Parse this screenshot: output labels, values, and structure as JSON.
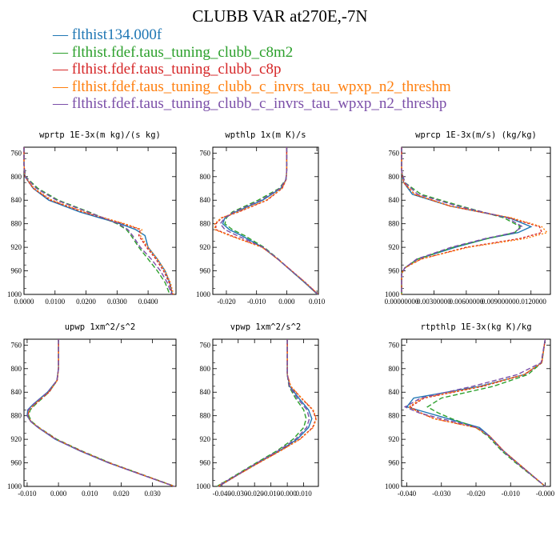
{
  "title": "CLUBB VAR at270E,-7N",
  "legend": [
    {
      "name": "flthist134.000f",
      "color": "#1f77b4"
    },
    {
      "name": "flthist.fdef.taus_tuning_clubb_c8m2",
      "color": "#2ca02c"
    },
    {
      "name": "flthist.fdef.taus_tuning_clubb_c8p",
      "color": "#d62728"
    },
    {
      "name": "flthist.fdef.taus_tuning_clubb_c_invrs_tau_wpxp_n2_threshm",
      "color": "#ff7f0e"
    },
    {
      "name": "flthist.fdef.taus_tuning_clubb_c_invrs_tau_wpxp_n2_threshp",
      "color": "#7b4fa8"
    }
  ],
  "chart_data": [
    {
      "type": "line",
      "title": "wprtp  1E-3x(m kg)/(s kg)",
      "xlim": [
        0,
        0.049
      ],
      "ylim": [
        1000,
        750
      ],
      "xticks": [
        0,
        0.01,
        0.02,
        0.03,
        0.04
      ],
      "xticklabels": [
        "0.0000",
        "0.0100",
        "0.0200",
        "0.0300",
        "0.0400"
      ],
      "yticks": [
        760,
        800,
        840,
        880,
        920,
        960,
        1000
      ],
      "yticklabels": [
        "760",
        "800",
        "840",
        "880",
        "920",
        "960",
        "1000"
      ],
      "y": [
        750,
        780,
        800,
        820,
        840,
        860,
        880,
        890,
        900,
        920,
        940,
        960,
        980,
        1000
      ],
      "series": [
        {
          "values": [
            0,
            0.0,
            0.0003,
            0.003,
            0.008,
            0.018,
            0.031,
            0.036,
            0.039,
            0.04,
            0.043,
            0.0455,
            0.047,
            0.0478
          ]
        },
        {
          "values": [
            0,
            0.0,
            0.0005,
            0.0045,
            0.011,
            0.021,
            0.03,
            0.033,
            0.0345,
            0.037,
            0.04,
            0.043,
            0.0455,
            0.047
          ]
        },
        {
          "values": [
            0,
            0.0,
            0.0003,
            0.003,
            0.0085,
            0.019,
            0.032,
            0.0375,
            0.037,
            0.0395,
            0.0425,
            0.045,
            0.0468,
            0.0478
          ]
        },
        {
          "values": [
            0,
            0.0,
            0.0003,
            0.0033,
            0.009,
            0.0195,
            0.0325,
            0.038,
            0.0375,
            0.04,
            0.043,
            0.0455,
            0.0472,
            0.0482
          ]
        },
        {
          "values": [
            0,
            0.0,
            0.0004,
            0.004,
            0.0105,
            0.0205,
            0.0305,
            0.0335,
            0.035,
            0.0375,
            0.041,
            0.044,
            0.0462,
            0.0476
          ]
        }
      ]
    },
    {
      "type": "line",
      "title": "wpthlp  1x(m K)/s",
      "xlim": [
        -0.0245,
        0.0105
      ],
      "ylim": [
        1000,
        750
      ],
      "xticks": [
        -0.02,
        -0.01,
        0,
        0.01
      ],
      "xticklabels": [
        "-0.020",
        "-0.010",
        "0.000",
        "0.010"
      ],
      "yticks": [
        760,
        800,
        840,
        880,
        920,
        960,
        1000
      ],
      "yticklabels": [
        "760",
        "800",
        "840",
        "880",
        "920",
        "960",
        "1000"
      ],
      "y": [
        750,
        790,
        805,
        820,
        840,
        860,
        870,
        880,
        890,
        900,
        920,
        940,
        960,
        980,
        1000
      ],
      "series": [
        {
          "values": [
            0,
            0,
            -0.0002,
            -0.002,
            -0.008,
            -0.017,
            -0.0205,
            -0.0212,
            -0.019,
            -0.015,
            -0.008,
            -0.003,
            0.0015,
            0.006,
            0.0102
          ]
        },
        {
          "values": [
            0,
            0,
            -0.0003,
            -0.0025,
            -0.0095,
            -0.018,
            -0.02,
            -0.0205,
            -0.018,
            -0.014,
            -0.0075,
            -0.0028,
            0.0015,
            0.006,
            0.0102
          ]
        },
        {
          "values": [
            0,
            0,
            -0.0002,
            -0.0015,
            -0.0065,
            -0.016,
            -0.0215,
            -0.0235,
            -0.0235,
            -0.0185,
            -0.008,
            -0.003,
            0.0017,
            0.0062,
            0.0104
          ]
        },
        {
          "values": [
            0,
            0,
            -0.0002,
            -0.0016,
            -0.0068,
            -0.0163,
            -0.0218,
            -0.0238,
            -0.0238,
            -0.019,
            -0.0082,
            -0.003,
            0.0017,
            0.0063,
            0.0105
          ]
        },
        {
          "values": [
            0,
            0,
            -0.0003,
            -0.0022,
            -0.0085,
            -0.0175,
            -0.0205,
            -0.022,
            -0.0205,
            -0.0165,
            -0.0078,
            -0.0029,
            0.0016,
            0.0061,
            0.0103
          ]
        }
      ]
    },
    {
      "type": "line",
      "title": "wprcp  1E-3x(m/s) (kg/kg)",
      "xlim": [
        0,
        0.0138
      ],
      "ylim": [
        1000,
        750
      ],
      "xticks": [
        0,
        0.003,
        0.006,
        0.009,
        0.012
      ],
      "xticklabels": [
        "0.00000000",
        "0.00300000",
        "0.00600000",
        "0.00900000",
        "0.0120000"
      ],
      "yticks": [
        760,
        800,
        840,
        880,
        920,
        960,
        1000
      ],
      "yticklabels": [
        "760",
        "800",
        "840",
        "880",
        "920",
        "960",
        "1000"
      ],
      "y": [
        750,
        790,
        810,
        830,
        850,
        870,
        885,
        895,
        905,
        920,
        940,
        955,
        965,
        1000
      ],
      "series": [
        {
          "values": [
            0,
            0.0,
            0.0002,
            0.001,
            0.0045,
            0.01,
            0.012,
            0.0108,
            0.008,
            0.005,
            0.0015,
            0.0003,
            0.0,
            0
          ]
        },
        {
          "values": [
            0,
            0.0,
            0.0003,
            0.0018,
            0.0055,
            0.0095,
            0.011,
            0.0105,
            0.008,
            0.0048,
            0.0015,
            0.0003,
            0.0,
            0
          ]
        },
        {
          "values": [
            0,
            0.0,
            0.0002,
            0.0012,
            0.0045,
            0.01,
            0.0128,
            0.013,
            0.011,
            0.006,
            0.0018,
            0.0003,
            0.0,
            0
          ]
        },
        {
          "values": [
            0,
            0.0,
            0.0002,
            0.0012,
            0.0045,
            0.0102,
            0.013,
            0.0135,
            0.0115,
            0.0062,
            0.0018,
            0.0003,
            0.0,
            0
          ]
        },
        {
          "values": [
            0,
            0.0,
            0.0003,
            0.0015,
            0.0052,
            0.0098,
            0.0112,
            0.0104,
            0.0078,
            0.0046,
            0.0014,
            0.0003,
            0.0,
            0
          ]
        }
      ]
    },
    {
      "type": "line",
      "title": "upwp  1xm^2/s^2",
      "xlim": [
        -0.011,
        0.0375
      ],
      "ylim": [
        1000,
        750
      ],
      "xticks": [
        -0.01,
        0,
        0.01,
        0.02,
        0.03
      ],
      "xticklabels": [
        "-0.010",
        "0.000",
        "0.010",
        "0.020",
        "0.030"
      ],
      "yticks": [
        760,
        800,
        840,
        880,
        920,
        960,
        1000
      ],
      "yticklabels": [
        "760",
        "800",
        "840",
        "880",
        "920",
        "960",
        "1000"
      ],
      "y": [
        750,
        800,
        820,
        840,
        860,
        870,
        880,
        890,
        900,
        920,
        940,
        960,
        980,
        1000
      ],
      "series": [
        {
          "values": [
            0,
            0,
            -0.0005,
            -0.0035,
            -0.008,
            -0.0098,
            -0.01,
            -0.0088,
            -0.0065,
            -0.001,
            0.007,
            0.016,
            0.0265,
            0.037
          ]
        },
        {
          "values": [
            0,
            0,
            -0.0004,
            -0.003,
            -0.0072,
            -0.009,
            -0.0095,
            -0.0085,
            -0.0062,
            -0.0005,
            0.0075,
            0.0165,
            0.0268,
            0.0372
          ]
        },
        {
          "values": [
            0,
            0,
            -0.0004,
            -0.003,
            -0.0075,
            -0.0093,
            -0.0098,
            -0.0088,
            -0.0064,
            -0.0008,
            0.0072,
            0.0162,
            0.0266,
            0.037
          ]
        },
        {
          "values": [
            0,
            0,
            -0.0004,
            -0.0032,
            -0.0076,
            -0.0094,
            -0.0098,
            -0.0087,
            -0.0063,
            -0.0008,
            0.0072,
            0.0162,
            0.0266,
            0.0371
          ]
        },
        {
          "values": [
            0,
            0,
            -0.0005,
            -0.0034,
            -0.0078,
            -0.0096,
            -0.0099,
            -0.0088,
            -0.0064,
            -0.0009,
            0.0071,
            0.0161,
            0.0265,
            0.037
          ]
        }
      ]
    },
    {
      "type": "line",
      "title": "vpwp  1xm^2/s^2",
      "xlim": [
        -0.0455,
        0.019
      ],
      "ylim": [
        1000,
        750
      ],
      "xticks": [
        -0.04,
        -0.03,
        -0.02,
        -0.01,
        0,
        0.01
      ],
      "xticklabels": [
        "-0.040",
        "-0.030",
        "-0.020",
        "-0.010",
        "-0.000",
        "0.010"
      ],
      "yticks": [
        760,
        800,
        840,
        880,
        920,
        960,
        1000
      ],
      "yticklabels": [
        "760",
        "800",
        "840",
        "880",
        "920",
        "960",
        "1000"
      ],
      "y": [
        750,
        810,
        830,
        850,
        870,
        885,
        900,
        920,
        940,
        960,
        980,
        1000
      ],
      "series": [
        {
          "values": [
            0,
            0,
            0.0015,
            0.007,
            0.013,
            0.015,
            0.013,
            0.006,
            -0.005,
            -0.018,
            -0.03,
            -0.042
          ]
        },
        {
          "values": [
            0,
            0,
            0.001,
            0.005,
            0.01,
            0.0115,
            0.01,
            0.0035,
            -0.0065,
            -0.019,
            -0.031,
            -0.043
          ]
        },
        {
          "values": [
            0,
            0,
            0.002,
            0.0085,
            0.0155,
            0.0175,
            0.0155,
            0.0075,
            -0.0045,
            -0.0175,
            -0.03,
            -0.042
          ]
        },
        {
          "values": [
            0,
            0,
            0.0022,
            0.0088,
            0.0158,
            0.0178,
            0.0158,
            0.0078,
            -0.0043,
            -0.0174,
            -0.03,
            -0.0425
          ]
        },
        {
          "values": [
            0,
            0,
            0.0012,
            0.006,
            0.012,
            0.0135,
            0.0118,
            0.005,
            -0.0058,
            -0.0185,
            -0.0305,
            -0.0425
          ]
        }
      ]
    },
    {
      "type": "line",
      "title": "rtpthlp  1E-3x(kg K)/kg",
      "xlim": [
        -0.0415,
        0.0015
      ],
      "ylim": [
        1000,
        750
      ],
      "xticks": [
        -0.04,
        -0.03,
        -0.02,
        -0.01,
        0
      ],
      "xticklabels": [
        "-0.040",
        "-0.030",
        "-0.020",
        "-0.010",
        "-0.000"
      ],
      "yticks": [
        760,
        800,
        840,
        880,
        920,
        960,
        1000
      ],
      "yticklabels": [
        "760",
        "800",
        "840",
        "880",
        "920",
        "960",
        "1000"
      ],
      "y": [
        750,
        790,
        810,
        830,
        850,
        865,
        875,
        885,
        900,
        915,
        940,
        960,
        980,
        1000
      ],
      "series": [
        {
          "values": [
            0,
            -0.001,
            -0.006,
            -0.019,
            -0.038,
            -0.04,
            -0.034,
            -0.028,
            -0.019,
            -0.016,
            -0.012,
            -0.008,
            -0.004,
            0
          ]
        },
        {
          "values": [
            0,
            -0.001,
            -0.005,
            -0.015,
            -0.03,
            -0.034,
            -0.031,
            -0.027,
            -0.02,
            -0.0165,
            -0.0125,
            -0.0085,
            -0.0042,
            0
          ]
        },
        {
          "values": [
            0,
            -0.001,
            -0.006,
            -0.018,
            -0.035,
            -0.039,
            -0.036,
            -0.032,
            -0.02,
            -0.016,
            -0.012,
            -0.008,
            -0.004,
            0
          ]
        },
        {
          "values": [
            0,
            -0.001,
            -0.0062,
            -0.0185,
            -0.0355,
            -0.0395,
            -0.0362,
            -0.0322,
            -0.0202,
            -0.016,
            -0.012,
            -0.008,
            -0.004,
            0
          ]
        },
        {
          "values": [
            0,
            -0.0012,
            -0.008,
            -0.021,
            -0.036,
            -0.0405,
            -0.0365,
            -0.03,
            -0.0195,
            -0.0162,
            -0.0122,
            -0.0082,
            -0.0041,
            0
          ]
        }
      ]
    }
  ]
}
